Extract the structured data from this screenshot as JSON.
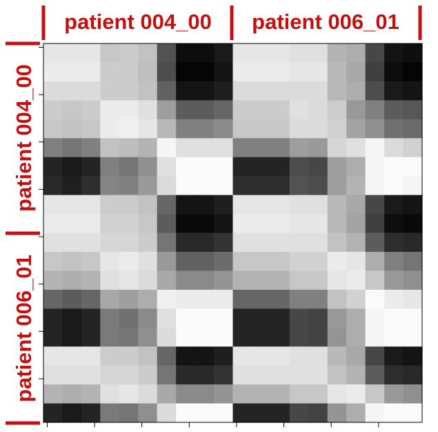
{
  "chart_data": {
    "type": "heatmap",
    "title": "",
    "xlabel": "",
    "ylabel": "",
    "colormap": "grayscale (black = low, white = high)",
    "grid": false,
    "colors": {
      "label": "#c41010",
      "axis": "#000000"
    },
    "x_groups": [
      "patient 004_00",
      "patient 006_01"
    ],
    "y_groups": [
      "patient 004_00",
      "patient 006_01"
    ],
    "rows": 20,
    "cols": 20,
    "row_pattern": [
      0.88,
      0.9,
      0.84,
      0.76,
      0.74,
      0.45,
      0.14,
      0.15
    ],
    "cell_values": [
      [
        0.9,
        0.9,
        0.9,
        0.78,
        0.8,
        0.76,
        0.32,
        0.05,
        0.05,
        0.1,
        0.9,
        0.9,
        0.9,
        0.88,
        0.88,
        0.7,
        0.68,
        0.28,
        0.08,
        0.06
      ],
      [
        0.92,
        0.92,
        0.92,
        0.8,
        0.8,
        0.75,
        0.3,
        0.02,
        0.02,
        0.08,
        0.92,
        0.92,
        0.92,
        0.9,
        0.9,
        0.72,
        0.66,
        0.25,
        0.05,
        0.02
      ],
      [
        0.86,
        0.86,
        0.86,
        0.8,
        0.8,
        0.76,
        0.38,
        0.08,
        0.08,
        0.12,
        0.86,
        0.86,
        0.86,
        0.86,
        0.86,
        0.72,
        0.68,
        0.3,
        0.1,
        0.08
      ],
      [
        0.8,
        0.78,
        0.8,
        0.92,
        0.92,
        0.88,
        0.62,
        0.36,
        0.36,
        0.4,
        0.8,
        0.8,
        0.8,
        0.88,
        0.86,
        0.8,
        0.6,
        0.5,
        0.36,
        0.34
      ],
      [
        0.78,
        0.76,
        0.78,
        0.92,
        0.94,
        0.9,
        0.72,
        0.5,
        0.5,
        0.54,
        0.78,
        0.78,
        0.78,
        0.86,
        0.86,
        0.82,
        0.64,
        0.56,
        0.44,
        0.42
      ],
      [
        0.5,
        0.46,
        0.5,
        0.76,
        0.74,
        0.7,
        0.96,
        0.88,
        0.88,
        0.88,
        0.5,
        0.5,
        0.5,
        0.62,
        0.6,
        0.84,
        0.88,
        0.96,
        0.86,
        0.82
      ],
      [
        0.14,
        0.1,
        0.14,
        0.5,
        0.46,
        0.56,
        0.88,
        0.98,
        0.98,
        0.98,
        0.14,
        0.14,
        0.14,
        0.3,
        0.28,
        0.62,
        0.68,
        0.96,
        0.98,
        0.98
      ],
      [
        0.16,
        0.12,
        0.18,
        0.52,
        0.5,
        0.6,
        0.86,
        0.98,
        0.98,
        0.98,
        0.18,
        0.18,
        0.18,
        0.32,
        0.3,
        0.62,
        0.7,
        0.96,
        0.98,
        0.96
      ],
      [
        0.9,
        0.9,
        0.9,
        0.8,
        0.8,
        0.76,
        0.4,
        0.08,
        0.08,
        0.12,
        0.9,
        0.9,
        0.9,
        0.88,
        0.88,
        0.72,
        0.66,
        0.28,
        0.1,
        0.08
      ],
      [
        0.92,
        0.92,
        0.92,
        0.82,
        0.82,
        0.78,
        0.36,
        0.04,
        0.04,
        0.08,
        0.92,
        0.92,
        0.92,
        0.9,
        0.9,
        0.72,
        0.64,
        0.25,
        0.06,
        0.04
      ],
      [
        0.88,
        0.88,
        0.88,
        0.84,
        0.84,
        0.8,
        0.46,
        0.16,
        0.16,
        0.2,
        0.88,
        0.88,
        0.88,
        0.88,
        0.88,
        0.76,
        0.7,
        0.36,
        0.18,
        0.16
      ],
      [
        0.78,
        0.76,
        0.78,
        0.9,
        0.92,
        0.88,
        0.6,
        0.38,
        0.38,
        0.42,
        0.78,
        0.78,
        0.78,
        0.82,
        0.82,
        0.92,
        0.9,
        0.68,
        0.5,
        0.46
      ],
      [
        0.7,
        0.68,
        0.7,
        0.88,
        0.9,
        0.86,
        0.66,
        0.54,
        0.54,
        0.58,
        0.7,
        0.7,
        0.7,
        0.78,
        0.78,
        0.9,
        0.92,
        0.78,
        0.6,
        0.56
      ],
      [
        0.4,
        0.36,
        0.4,
        0.66,
        0.62,
        0.68,
        0.94,
        0.92,
        0.92,
        0.92,
        0.4,
        0.4,
        0.4,
        0.5,
        0.5,
        0.76,
        0.82,
        0.98,
        0.92,
        0.9
      ],
      [
        0.14,
        0.1,
        0.14,
        0.48,
        0.44,
        0.54,
        0.88,
        0.98,
        0.98,
        0.98,
        0.14,
        0.14,
        0.14,
        0.28,
        0.26,
        0.6,
        0.68,
        0.96,
        0.98,
        0.98
      ],
      [
        0.14,
        0.1,
        0.14,
        0.48,
        0.46,
        0.56,
        0.86,
        0.98,
        0.98,
        0.98,
        0.14,
        0.14,
        0.14,
        0.28,
        0.26,
        0.58,
        0.68,
        0.96,
        0.98,
        0.98
      ],
      [
        0.9,
        0.9,
        0.9,
        0.8,
        0.8,
        0.76,
        0.4,
        0.08,
        0.08,
        0.12,
        0.9,
        0.9,
        0.9,
        0.88,
        0.88,
        0.72,
        0.66,
        0.28,
        0.1,
        0.08
      ],
      [
        0.88,
        0.88,
        0.88,
        0.84,
        0.84,
        0.8,
        0.46,
        0.16,
        0.16,
        0.2,
        0.88,
        0.88,
        0.88,
        0.88,
        0.88,
        0.76,
        0.7,
        0.36,
        0.18,
        0.16
      ],
      [
        0.7,
        0.68,
        0.7,
        0.88,
        0.9,
        0.86,
        0.66,
        0.54,
        0.54,
        0.58,
        0.7,
        0.7,
        0.7,
        0.78,
        0.78,
        0.9,
        0.92,
        0.78,
        0.6,
        0.56
      ],
      [
        0.14,
        0.1,
        0.14,
        0.48,
        0.46,
        0.56,
        0.86,
        0.98,
        0.98,
        0.98,
        0.14,
        0.14,
        0.14,
        0.28,
        0.26,
        0.58,
        0.68,
        0.96,
        0.98,
        0.98
      ]
    ]
  }
}
